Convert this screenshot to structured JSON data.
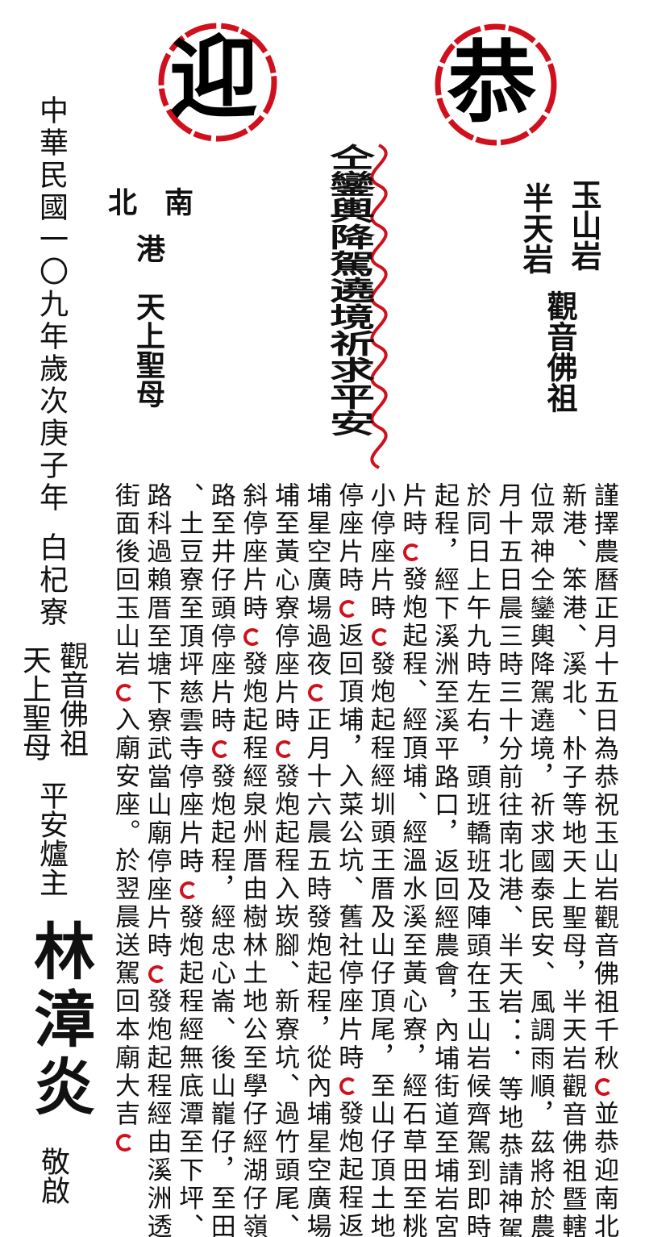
{
  "seals": {
    "left": "迎",
    "right": "恭"
  },
  "right_temple": {
    "names": [
      "玉山岩",
      "半天岩"
    ],
    "deity": "觀音佛祖"
  },
  "banner": "仝鑾輿降駕遶境祈求平安",
  "left_temple": {
    "south": "南",
    "north": "北",
    "harbor": "港",
    "deity": "天上聖母"
  },
  "body": {
    "columns": [
      [
        "謹擇農曆正月十五日為恭祝玉山岩觀音佛祖千秋",
        "並恭迎南北港、"
      ],
      [
        "新港、笨港、溪北、朴子等地天上聖母，半天岩觀音佛祖暨轄內諸"
      ],
      [
        "位眾神仝鑾輿降駕遶境，祈求國泰民安、風調雨順，茲將於農曆正"
      ],
      [
        "月十五日晨三時三十分前往南北港、半天岩．．．等地恭請神駕，"
      ],
      [
        "於同日上午九時左右，頭班轎班及陣頭在玉山岩候齊駕到即時發炮"
      ],
      [
        "起程，經下溪洲至溪平路口，返回經農會，內埔街道至埔岩宮停座"
      ],
      [
        "片時",
        "發炮起程、經頂埔、經溫水溪至黃心寮，經石草田至桃源國"
      ],
      [
        "小停座片時",
        "發炮起程經圳頭王厝及山仔頂尾，至山仔頂土地公廟"
      ],
      [
        "停座片時",
        "返回頂埔，入菜公坑、舊社停座片時",
        "發炮起程返回內"
      ],
      [
        "埔星空廣場過夜",
        "正月十六晨五時發炮起程，從內埔星空廣場經頂"
      ],
      [
        "埔至黃心寮停座片時",
        "發炮起程入崁腳、新寮坑、過竹頭尾、桃仔"
      ],
      [
        "斜停座片時",
        "發炮起程經泉州厝由樹林土地公至學仔經湖仔嶺、橫"
      ],
      [
        "路至井仔頭停座片時",
        "發炮起程，經忠心崙、後山巃仔，至田仔坑"
      ],
      [
        "、土豆寮至頂坪慈雲寺停座片時",
        "發炮起程經無底潭至下坪、番仔"
      ],
      [
        "路科過賴厝至塘下寮武當山廟停座片時",
        "發炮起程經由溪洲透內埔"
      ],
      [
        "街面後回玉山岩",
        "入廟安座。於翌晨送駕回本廟大吉",
        ""
      ]
    ]
  },
  "signature": {
    "date": "中華民國一〇九年歲次庚子年",
    "village": "白杞寮",
    "deities": [
      "觀音佛祖",
      "天上聖母"
    ],
    "role": "平安爐主",
    "name": "林漳炎",
    "closing": "敬啟"
  }
}
